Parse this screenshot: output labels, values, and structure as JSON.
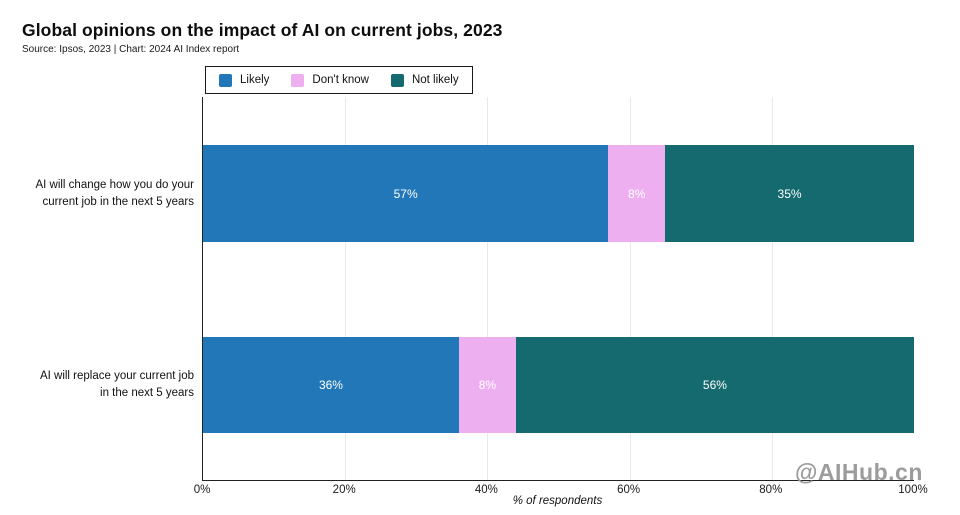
{
  "title": "Global opinions on the impact of AI on current jobs, 2023",
  "subtitle": "Source: Ipsos, 2023 | Chart: 2024 AI Index report",
  "watermark": "@AIHub.cn",
  "colors": {
    "likely": "#2177b8",
    "dont_know": "#edaff0",
    "not_likely": "#156a70",
    "axis": "#222222",
    "grid": "#e9e9e9",
    "bar_label": "#ffffff",
    "watermark": "#9c9c9c"
  },
  "legend": {
    "items": [
      {
        "label": "Likely",
        "color": "#2177b8"
      },
      {
        "label": "Don't know",
        "color": "#edaff0"
      },
      {
        "label": "Not likely",
        "color": "#156a70"
      }
    ]
  },
  "chart_data": {
    "type": "bar",
    "orientation": "horizontal",
    "stacked": true,
    "title": "Global opinions on the impact of AI on current jobs, 2023",
    "categories": [
      "AI will change how you do your\ncurrent job in the next 5 years",
      "AI will replace your current job\nin the next 5 years"
    ],
    "series": [
      {
        "name": "Likely",
        "color": "#2177b8",
        "values": [
          57,
          36
        ]
      },
      {
        "name": "Don't know",
        "color": "#edaff0",
        "values": [
          8,
          8
        ]
      },
      {
        "name": "Not likely",
        "color": "#156a70",
        "values": [
          35,
          56
        ]
      }
    ],
    "xlabel": "% of respondents",
    "xlim": [
      0,
      100
    ],
    "x_ticks": [
      0,
      20,
      40,
      60,
      80,
      100
    ],
    "x_tick_suffix": "%",
    "gridlines_pct": [
      20,
      40,
      60,
      80
    ],
    "legend_position": "top",
    "value_label_suffix": "%",
    "grid": true
  }
}
